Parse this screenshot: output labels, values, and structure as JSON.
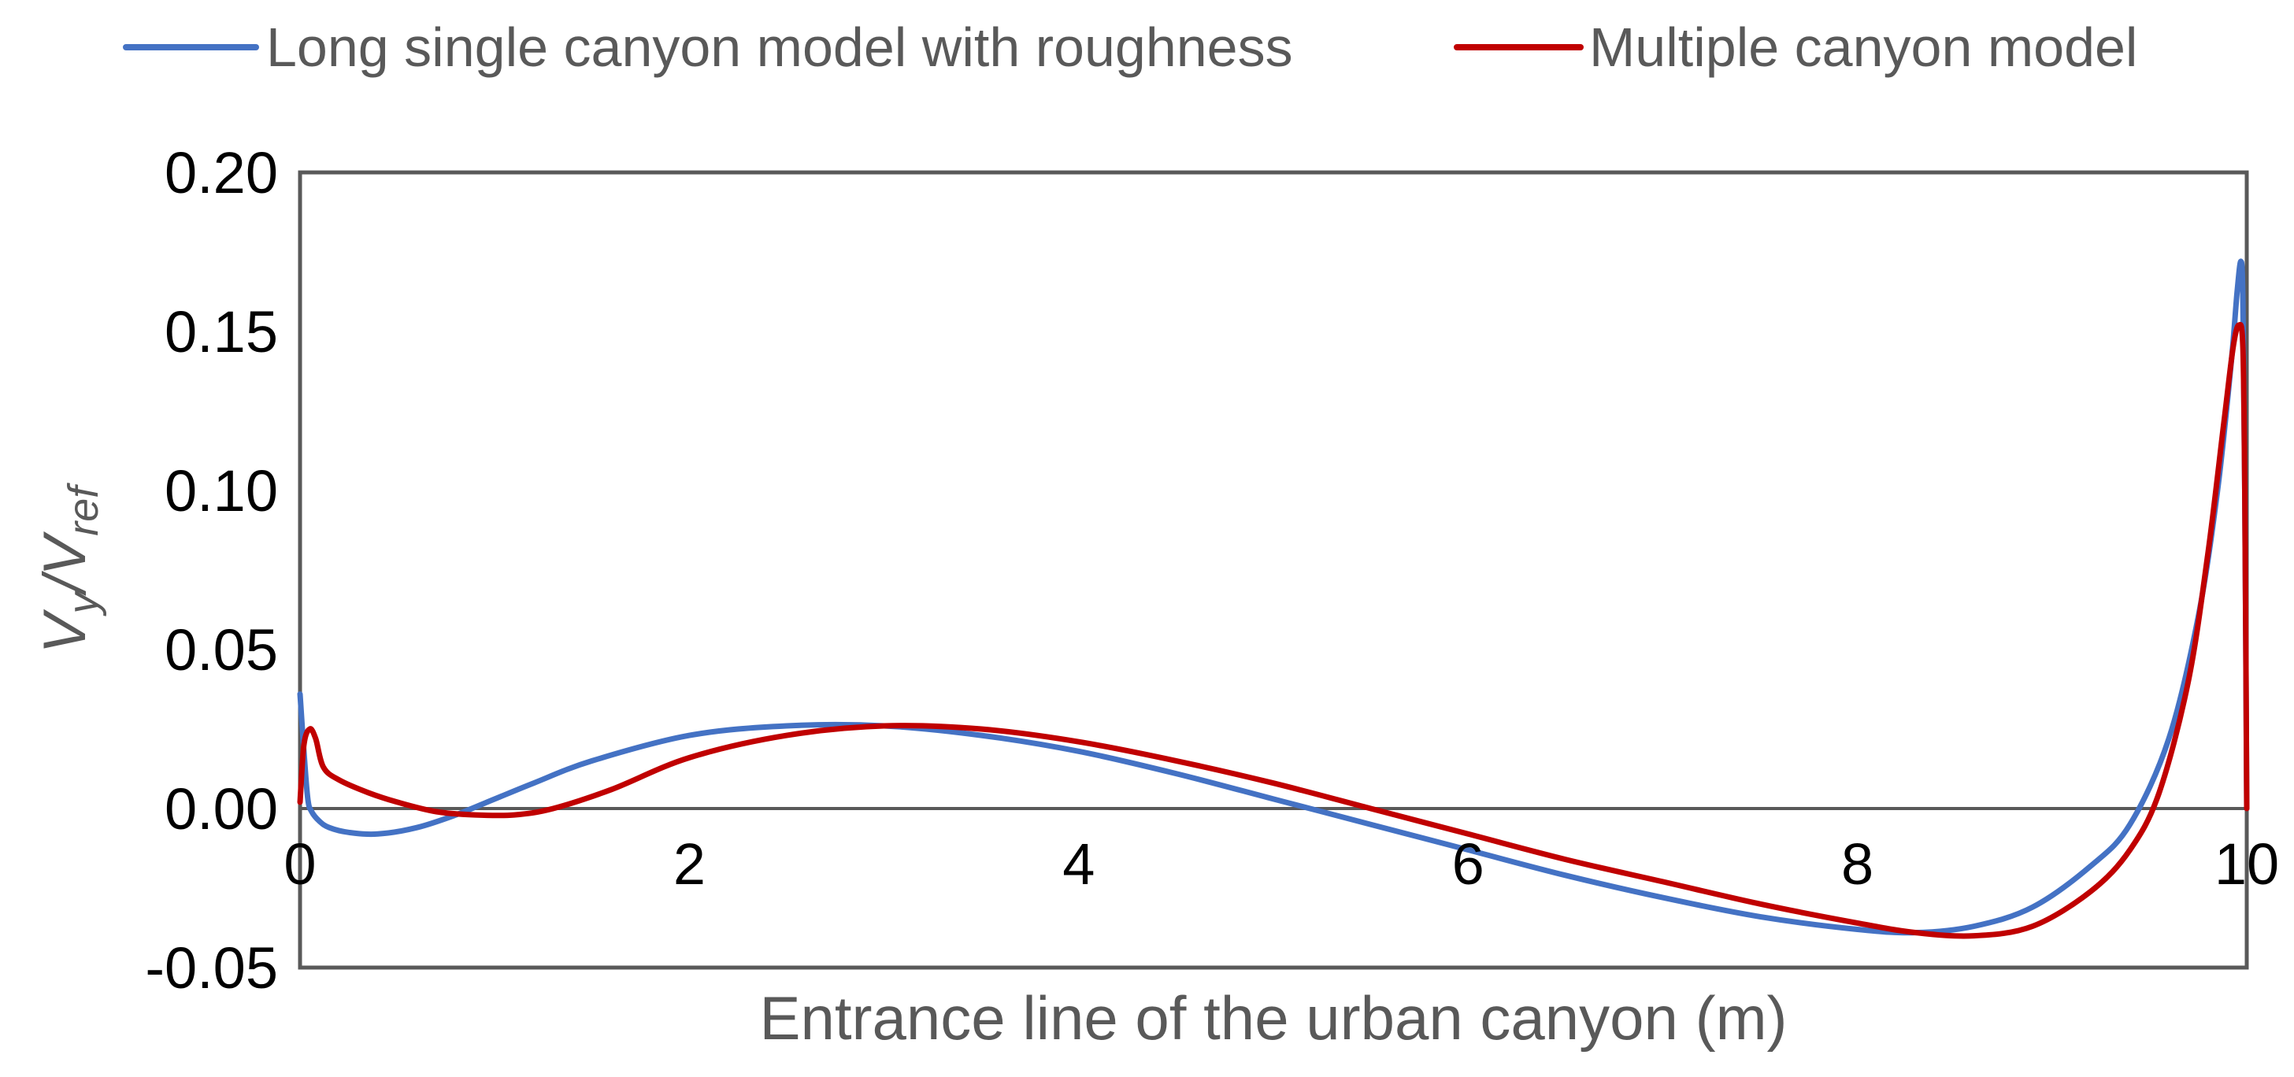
{
  "chart_data": {
    "type": "line",
    "title": "",
    "xlabel": "Entrance line of  the urban canyon (m)",
    "ylabel": {
      "main": "V",
      "sub1": "y",
      "sep": "/V",
      "sub2": "ref"
    },
    "xlim": [
      0,
      10
    ],
    "ylim": [
      -0.05,
      0.2
    ],
    "xticks": [
      "0",
      "2",
      "4",
      "6",
      "8",
      "10"
    ],
    "yticks": [
      "0.20",
      "0.15",
      "0.10",
      "0.05",
      "0.00",
      "-0.05"
    ],
    "xtick_values": [
      0,
      2,
      4,
      6,
      8,
      10
    ],
    "ytick_values": [
      0.2,
      0.15,
      0.1,
      0.05,
      0.0,
      -0.05
    ],
    "grid": false,
    "zero_line": true,
    "legend_position": "top",
    "series": [
      {
        "name": "Long single canyon model with roughness",
        "color": "#4472C4",
        "x": [
          0,
          0.02,
          0.04,
          0.06,
          0.1,
          0.15,
          0.25,
          0.4,
          0.6,
          0.8,
          1.0,
          1.2,
          1.5,
          2.0,
          2.5,
          3.0,
          3.5,
          4.0,
          4.5,
          5.0,
          5.5,
          6.0,
          6.5,
          7.0,
          7.5,
          8.0,
          8.3,
          8.6,
          8.9,
          9.2,
          9.4,
          9.6,
          9.75,
          9.85,
          9.92,
          9.95,
          9.97,
          9.98,
          9.99,
          10.0
        ],
        "y": [
          0.036,
          0.018,
          0.003,
          -0.001,
          -0.004,
          -0.006,
          -0.0075,
          -0.008,
          -0.006,
          -0.002,
          0.003,
          0.008,
          0.015,
          0.023,
          0.026,
          0.026,
          0.023,
          0.018,
          0.011,
          0.003,
          -0.005,
          -0.013,
          -0.021,
          -0.028,
          -0.034,
          -0.038,
          -0.039,
          -0.037,
          -0.031,
          -0.018,
          -0.005,
          0.022,
          0.06,
          0.1,
          0.14,
          0.162,
          0.172,
          0.16,
          0.1,
          0.0
        ]
      },
      {
        "name": "Multiple canyon model",
        "color": "#C00000",
        "x": [
          0,
          0.02,
          0.05,
          0.08,
          0.12,
          0.2,
          0.35,
          0.5,
          0.7,
          0.9,
          1.1,
          1.3,
          1.6,
          2.0,
          2.5,
          3.0,
          3.5,
          4.0,
          4.5,
          5.0,
          5.5,
          6.0,
          6.5,
          7.0,
          7.5,
          8.0,
          8.3,
          8.6,
          8.9,
          9.2,
          9.4,
          9.55,
          9.7,
          9.8,
          9.88,
          9.93,
          9.96,
          9.98,
          9.99,
          10.0
        ],
        "y": [
          0.002,
          0.02,
          0.025,
          0.022,
          0.013,
          0.009,
          0.005,
          0.002,
          -0.001,
          -0.002,
          -0.002,
          0.0,
          0.006,
          0.016,
          0.023,
          0.026,
          0.025,
          0.021,
          0.015,
          0.008,
          0.0,
          -0.008,
          -0.016,
          -0.023,
          -0.03,
          -0.036,
          -0.039,
          -0.04,
          -0.037,
          -0.026,
          -0.013,
          0.005,
          0.04,
          0.08,
          0.12,
          0.145,
          0.152,
          0.145,
          0.1,
          0.0
        ]
      }
    ]
  }
}
